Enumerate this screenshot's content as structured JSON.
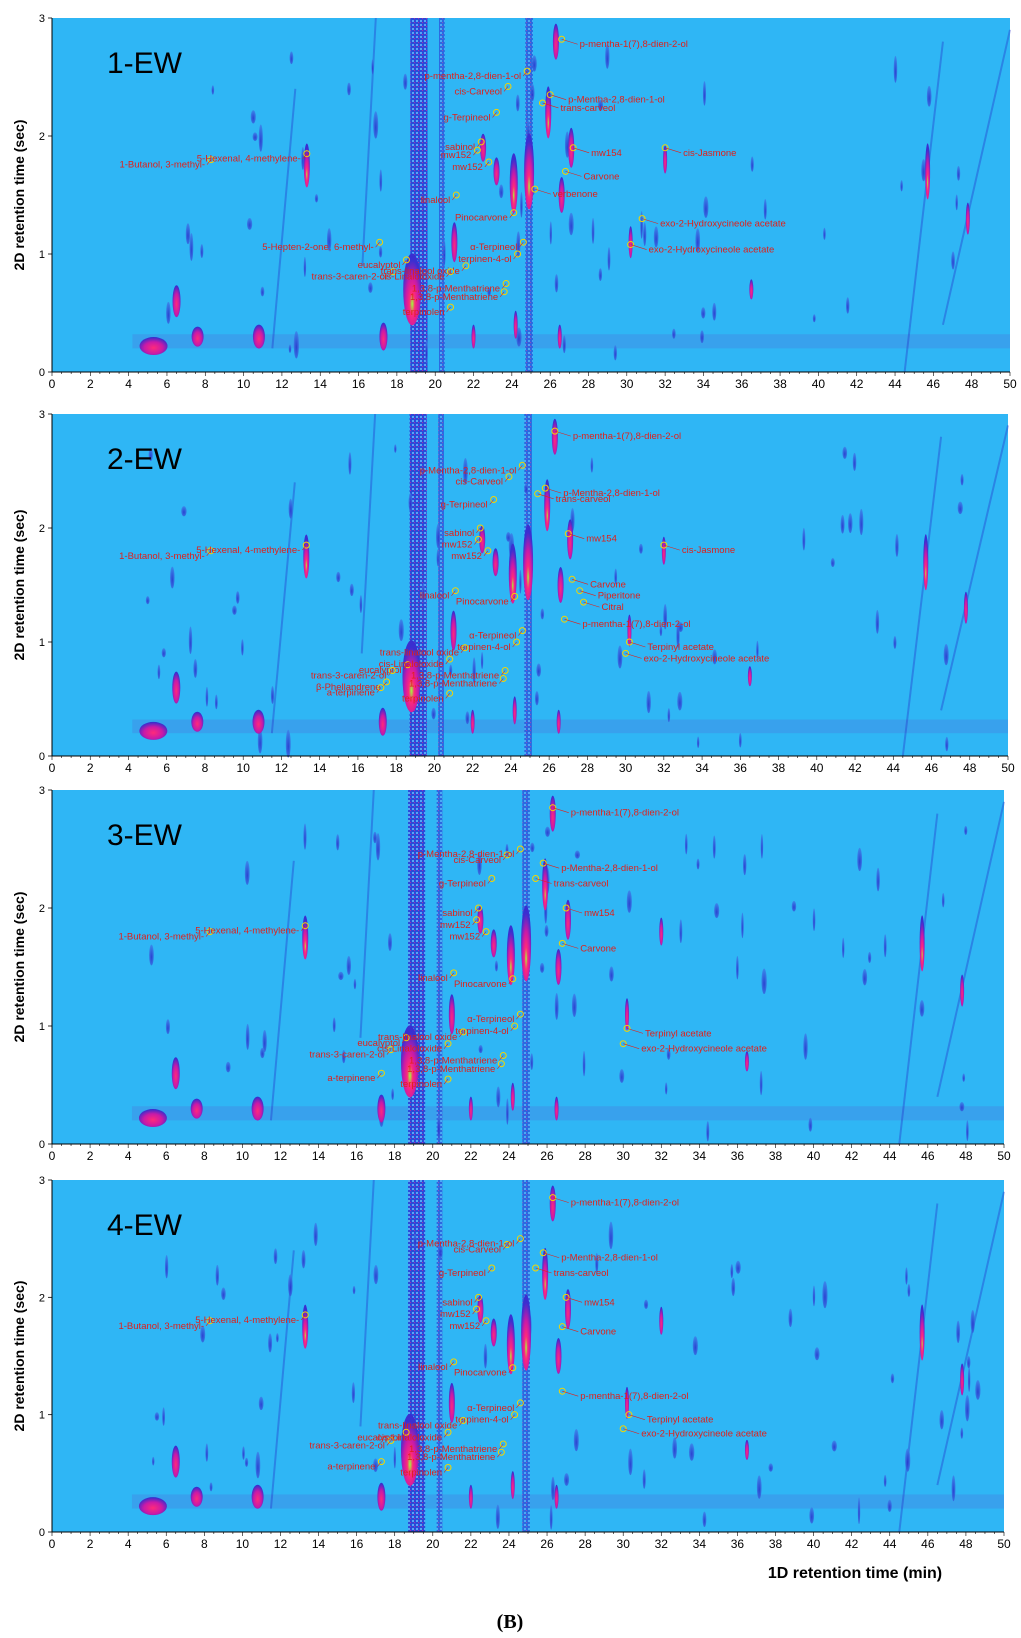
{
  "figure": {
    "caption": "(B)",
    "xlabel": "1D retention time (min)",
    "ylabel": "2D retention time (sec)",
    "colors": {
      "background": "#2fb6f5",
      "streak": "#2228c8",
      "peak_edge": "#3a2fd0",
      "peak_mid": "#c81aa8",
      "peak_core": "#ff2a7a",
      "peak_hot": "#7cff3a",
      "label": "#e0201a"
    }
  },
  "chart_data": [
    {
      "type": "heatmap",
      "title": "1-EW",
      "xlim": [
        0,
        50
      ],
      "ylim": [
        0,
        3
      ],
      "x_ticks": [
        0,
        2,
        4,
        6,
        8,
        10,
        12,
        14,
        16,
        18,
        20,
        22,
        24,
        26,
        28,
        30,
        32,
        34,
        36,
        38,
        40,
        42,
        44,
        46,
        48,
        50
      ],
      "y_ticks": [
        0,
        1,
        2,
        3
      ],
      "xlabel": "",
      "ylabel": "2D retention time (sec)",
      "annotations": [
        {
          "label": "p-mentha-1(7),8-dien-2-ol",
          "x": 26.6,
          "y": 2.82
        },
        {
          "label": "cis-Carveol",
          "x": 23.8,
          "y": 2.42
        },
        {
          "label": "p-mentha-2,8-dien-1-ol",
          "x": 24.8,
          "y": 2.55
        },
        {
          "label": "g-Terpineol",
          "x": 23.2,
          "y": 2.2
        },
        {
          "label": "p-Mentha-2,8-dien-1-ol",
          "x": 26.0,
          "y": 2.35
        },
        {
          "label": "trans-carveol",
          "x": 25.6,
          "y": 2.28
        },
        {
          "label": "sabinol",
          "x": 22.4,
          "y": 1.95
        },
        {
          "label": "mw152",
          "x": 22.2,
          "y": 1.88
        },
        {
          "label": "mw152",
          "x": 22.8,
          "y": 1.78
        },
        {
          "label": "mw154",
          "x": 27.2,
          "y": 1.9
        },
        {
          "label": "cis-Jasmone",
          "x": 32.0,
          "y": 1.9
        },
        {
          "label": "1-Butanol, 3-methyl-",
          "x": 8.3,
          "y": 1.8
        },
        {
          "label": "5-Hexenal, 4-methylene-",
          "x": 13.3,
          "y": 1.85
        },
        {
          "label": "Carvone",
          "x": 26.8,
          "y": 1.7
        },
        {
          "label": "verbenone",
          "x": 25.2,
          "y": 1.55
        },
        {
          "label": "Pinocarvone",
          "x": 24.1,
          "y": 1.35
        },
        {
          "label": "linalool",
          "x": 21.1,
          "y": 1.5
        },
        {
          "label": "5-Hepten-2-one, 6-methyl-",
          "x": 17.1,
          "y": 1.1
        },
        {
          "label": "eucalyptol",
          "x": 18.5,
          "y": 0.95
        },
        {
          "label": "trans-3-caren-2-ol",
          "x": 17.8,
          "y": 0.85
        },
        {
          "label": "α-Terpineol",
          "x": 24.6,
          "y": 1.1
        },
        {
          "label": "terpinen-4-ol",
          "x": 24.3,
          "y": 1.0
        },
        {
          "label": "trans-linalool oxide",
          "x": 21.6,
          "y": 0.9
        },
        {
          "label": "cis-Linaloloxide",
          "x": 20.8,
          "y": 0.85
        },
        {
          "label": "1,3,8-p-Menthatriene",
          "x": 23.7,
          "y": 0.75
        },
        {
          "label": "1,3,8-p-Menthatriene",
          "x": 23.6,
          "y": 0.68
        },
        {
          "label": "exo-2-Hydroxycineole acetate",
          "x": 30.8,
          "y": 1.3
        },
        {
          "label": "exo-2-Hydroxycineole acetate",
          "x": 30.2,
          "y": 1.08
        },
        {
          "label": "terpinolen",
          "x": 20.8,
          "y": 0.55
        }
      ]
    },
    {
      "type": "heatmap",
      "title": "2-EW",
      "xlim": [
        0,
        50
      ],
      "ylim": [
        0,
        3
      ],
      "x_ticks": [
        0,
        2,
        4,
        6,
        8,
        10,
        12,
        14,
        16,
        18,
        20,
        22,
        24,
        26,
        28,
        30,
        32,
        34,
        36,
        38,
        40,
        42,
        44,
        46,
        48,
        50
      ],
      "y_ticks": [
        0,
        1,
        2,
        3
      ],
      "xlabel": "",
      "ylabel": "2D retention time (sec)",
      "annotations": [
        {
          "label": "p-mentha-1(7),8-dien-2-ol",
          "x": 26.3,
          "y": 2.85
        },
        {
          "label": "cis-Carveol",
          "x": 23.9,
          "y": 2.45
        },
        {
          "label": "p-Mentha-2,8-dien-1-ol",
          "x": 24.6,
          "y": 2.55
        },
        {
          "label": "g-Terpineol",
          "x": 23.1,
          "y": 2.25
        },
        {
          "label": "p-Mentha-2,8-dien-1-ol",
          "x": 25.8,
          "y": 2.35
        },
        {
          "label": "trans-carveol",
          "x": 25.4,
          "y": 2.3
        },
        {
          "label": "sabinol",
          "x": 22.4,
          "y": 2.0
        },
        {
          "label": "mw152",
          "x": 22.3,
          "y": 1.9
        },
        {
          "label": "mw152",
          "x": 22.8,
          "y": 1.8
        },
        {
          "label": "mw154",
          "x": 27.0,
          "y": 1.95
        },
        {
          "label": "cis-Jasmone",
          "x": 32.0,
          "y": 1.85
        },
        {
          "label": "1-Butanol, 3-methyl-",
          "x": 8.3,
          "y": 1.8
        },
        {
          "label": "5-Hexenal, 4-methylene-",
          "x": 13.3,
          "y": 1.85
        },
        {
          "label": "Carvone",
          "x": 27.2,
          "y": 1.55
        },
        {
          "label": "Piperitone",
          "x": 27.6,
          "y": 1.45
        },
        {
          "label": "Citral",
          "x": 27.8,
          "y": 1.35
        },
        {
          "label": "Pinocarvone",
          "x": 24.2,
          "y": 1.4
        },
        {
          "label": "linalool",
          "x": 21.1,
          "y": 1.45
        },
        {
          "label": "eucalyptol",
          "x": 18.6,
          "y": 0.8
        },
        {
          "label": "trans-3-caren-2-ol",
          "x": 17.8,
          "y": 0.75
        },
        {
          "label": "β-Phellandrene",
          "x": 17.5,
          "y": 0.65
        },
        {
          "label": "a-terpinene",
          "x": 17.2,
          "y": 0.6
        },
        {
          "label": "p-mentha-1(7),8-dien-2-ol",
          "x": 26.8,
          "y": 1.2
        },
        {
          "label": "α-Terpineol",
          "x": 24.6,
          "y": 1.1
        },
        {
          "label": "terpinen-4-ol",
          "x": 24.3,
          "y": 1.0
        },
        {
          "label": "trans-linalool oxide",
          "x": 21.6,
          "y": 0.95
        },
        {
          "label": "cis-Linaloloxide",
          "x": 20.8,
          "y": 0.85
        },
        {
          "label": "1,3,8-p-Menthatriene",
          "x": 23.7,
          "y": 0.75
        },
        {
          "label": "1,3,8-p-Menthatriene",
          "x": 23.6,
          "y": 0.68
        },
        {
          "label": "Terpinyl acetate",
          "x": 30.2,
          "y": 1.0
        },
        {
          "label": "exo-2-Hydroxycineole acetate",
          "x": 30.0,
          "y": 0.9
        },
        {
          "label": "terpinolen",
          "x": 20.8,
          "y": 0.55
        }
      ]
    },
    {
      "type": "heatmap",
      "title": "3-EW",
      "xlim": [
        0,
        50
      ],
      "ylim": [
        0,
        3
      ],
      "x_ticks": [
        0,
        2,
        4,
        6,
        8,
        10,
        12,
        14,
        16,
        18,
        20,
        22,
        24,
        26,
        28,
        30,
        32,
        34,
        36,
        38,
        40,
        42,
        44,
        46,
        48,
        50
      ],
      "y_ticks": [
        0,
        1,
        2,
        3
      ],
      "xlabel": "",
      "ylabel": "2D retention time (sec)",
      "annotations": [
        {
          "label": "p-mentha-1(7),8-dien-2-ol",
          "x": 26.3,
          "y": 2.85
        },
        {
          "label": "cis-Carveol",
          "x": 23.9,
          "y": 2.45
        },
        {
          "label": "p-Mentha-2,8-dien-1-ol",
          "x": 24.6,
          "y": 2.5
        },
        {
          "label": "g-Terpineol",
          "x": 23.1,
          "y": 2.25
        },
        {
          "label": "p-Mentha-2,8-dien-1-ol",
          "x": 25.8,
          "y": 2.38
        },
        {
          "label": "trans-carveol",
          "x": 25.4,
          "y": 2.25
        },
        {
          "label": "sabinol",
          "x": 22.4,
          "y": 2.0
        },
        {
          "label": "mw152",
          "x": 22.3,
          "y": 1.9
        },
        {
          "label": "mw152",
          "x": 22.8,
          "y": 1.8
        },
        {
          "label": "mw154",
          "x": 27.0,
          "y": 2.0
        },
        {
          "label": "1-Butanol, 3-methyl-",
          "x": 8.3,
          "y": 1.8
        },
        {
          "label": "5-Hexenal, 4-methylene-",
          "x": 13.3,
          "y": 1.85
        },
        {
          "label": "Carvone",
          "x": 26.8,
          "y": 1.7
        },
        {
          "label": "Pinocarvone",
          "x": 24.2,
          "y": 1.4
        },
        {
          "label": "linalool",
          "x": 21.1,
          "y": 1.45
        },
        {
          "label": "eucalyptol",
          "x": 18.6,
          "y": 0.9
        },
        {
          "label": "trans-3-caren-2-ol",
          "x": 17.8,
          "y": 0.8
        },
        {
          "label": "a-terpinene",
          "x": 17.3,
          "y": 0.6
        },
        {
          "label": "α-Terpineol",
          "x": 24.6,
          "y": 1.1
        },
        {
          "label": "terpinen-4-ol",
          "x": 24.3,
          "y": 1.0
        },
        {
          "label": "trans-linalool oxide",
          "x": 21.6,
          "y": 0.95
        },
        {
          "label": "cis-Linaloloxide",
          "x": 20.8,
          "y": 0.85
        },
        {
          "label": "1,3,8-p-Menthatriene",
          "x": 23.7,
          "y": 0.75
        },
        {
          "label": "1,3,8-p-Menthatriene",
          "x": 23.6,
          "y": 0.68
        },
        {
          "label": "Terpinyl acetate",
          "x": 30.2,
          "y": 0.98
        },
        {
          "label": "exo-2-Hydroxycineole acetate",
          "x": 30.0,
          "y": 0.85
        },
        {
          "label": "terpinolen",
          "x": 20.8,
          "y": 0.55
        }
      ]
    },
    {
      "type": "heatmap",
      "title": "4-EW",
      "xlim": [
        0,
        50
      ],
      "ylim": [
        0,
        3
      ],
      "x_ticks": [
        0,
        2,
        4,
        6,
        8,
        10,
        12,
        14,
        16,
        18,
        20,
        22,
        24,
        26,
        28,
        30,
        32,
        34,
        36,
        38,
        40,
        42,
        44,
        46,
        48,
        50
      ],
      "y_ticks": [
        0,
        1,
        2,
        3
      ],
      "xlabel": "1D retention time (min)",
      "ylabel": "2D retention time (sec)",
      "annotations": [
        {
          "label": "p-mentha-1(7),8-dien-2-ol",
          "x": 26.3,
          "y": 2.85
        },
        {
          "label": "cis-Carveol",
          "x": 23.9,
          "y": 2.45
        },
        {
          "label": "p-Mentha-2,8-dien-1-ol",
          "x": 24.6,
          "y": 2.5
        },
        {
          "label": "g-Terpineol",
          "x": 23.1,
          "y": 2.25
        },
        {
          "label": "p-Mentha-2,8-dien-1-ol",
          "x": 25.8,
          "y": 2.38
        },
        {
          "label": "trans-carveol",
          "x": 25.4,
          "y": 2.25
        },
        {
          "label": "sabinol",
          "x": 22.4,
          "y": 2.0
        },
        {
          "label": "mw152",
          "x": 22.3,
          "y": 1.9
        },
        {
          "label": "mw152",
          "x": 22.8,
          "y": 1.8
        },
        {
          "label": "mw154",
          "x": 27.0,
          "y": 2.0
        },
        {
          "label": "1-Butanol, 3-methyl-",
          "x": 8.3,
          "y": 1.8
        },
        {
          "label": "5-Hexenal, 4-methylene-",
          "x": 13.3,
          "y": 1.85
        },
        {
          "label": "Carvone",
          "x": 26.8,
          "y": 1.75
        },
        {
          "label": "Pinocarvone",
          "x": 24.2,
          "y": 1.4
        },
        {
          "label": "p-mentha-1(7),8-dien-2-ol",
          "x": 26.8,
          "y": 1.2
        },
        {
          "label": "linalool",
          "x": 21.1,
          "y": 1.45
        },
        {
          "label": "eucalyptol",
          "x": 18.6,
          "y": 0.85
        },
        {
          "label": "trans-3-caren-2-ol",
          "x": 17.8,
          "y": 0.78
        },
        {
          "label": "a-terpinene",
          "x": 17.3,
          "y": 0.6
        },
        {
          "label": "α-Terpineol",
          "x": 24.6,
          "y": 1.1
        },
        {
          "label": "terpinen-4-ol",
          "x": 24.3,
          "y": 1.0
        },
        {
          "label": "trans-linalool oxide",
          "x": 21.6,
          "y": 0.95
        },
        {
          "label": "cis-Linaloloxide",
          "x": 20.8,
          "y": 0.85
        },
        {
          "label": "1,3,8-p-Menthatriene",
          "x": 23.7,
          "y": 0.75
        },
        {
          "label": "1,3,8-p-Menthatriene",
          "x": 23.6,
          "y": 0.68
        },
        {
          "label": "Terpinyl acetate",
          "x": 30.3,
          "y": 1.0
        },
        {
          "label": "exo-2-Hydroxycineole acetate",
          "x": 30.0,
          "y": 0.88
        },
        {
          "label": "terpinolen",
          "x": 20.8,
          "y": 0.55
        }
      ]
    }
  ]
}
